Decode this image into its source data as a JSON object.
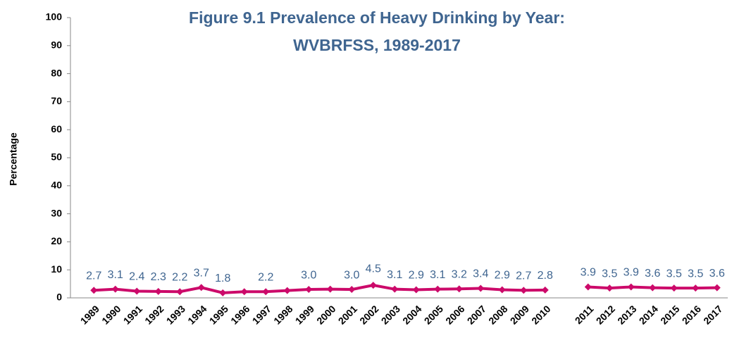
{
  "chart_data": {
    "type": "line",
    "title": [
      "Figure 9.1  Prevalence of Heavy Drinking by Year:",
      "WVBRFSS, 1989-2017"
    ],
    "y_label": "Percentage",
    "categories": [
      "1989",
      "1990",
      "1991",
      "1992",
      "1993",
      "1994",
      "1995",
      "1996",
      "1997",
      "1998",
      "1999",
      "2000",
      "2001",
      "2002",
      "2003",
      "2004",
      "2005",
      "2006",
      "2007",
      "2008",
      "2009",
      "2010",
      null,
      "2011",
      "2012",
      "2013",
      "2014",
      "2015",
      "2016",
      "2017"
    ],
    "series": [
      {
        "name": "Heavy Drinking",
        "color": "#cc0a6a",
        "values": [
          2.7,
          3.1,
          2.4,
          2.3,
          2.2,
          3.7,
          1.8,
          2.2,
          2.2,
          2.6,
          3.0,
          3.1,
          3.0,
          4.5,
          3.1,
          2.9,
          3.1,
          3.2,
          3.4,
          2.9,
          2.7,
          2.8,
          null,
          3.9,
          3.5,
          3.9,
          3.6,
          3.5,
          3.5,
          3.6
        ],
        "value_labels": [
          "2.7",
          "3.1",
          "2.4",
          "2.3",
          "2.2",
          "3.7",
          "1.8",
          null,
          "2.2",
          null,
          "3.0",
          null,
          "3.0",
          "4.5",
          "3.1",
          "2.9",
          "3.1",
          "3.2",
          "3.4",
          "2.9",
          "2.7",
          "2.8",
          null,
          "3.9",
          "3.5",
          "3.9",
          "3.6",
          "3.5",
          "3.5",
          "3.6"
        ]
      }
    ],
    "ylim": [
      0,
      100
    ],
    "yticks": [
      0,
      10,
      20,
      30,
      40,
      50,
      60,
      70,
      80,
      90,
      100
    ],
    "grid": false
  }
}
